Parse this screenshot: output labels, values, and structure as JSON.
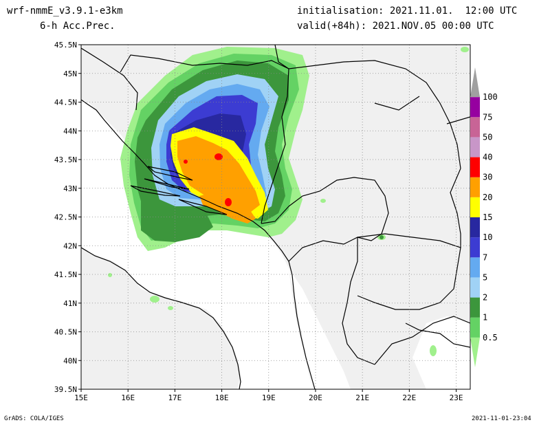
{
  "header": {
    "model": "wrf-nmmE_v3.9.1-e3km",
    "field": "6-h Acc.Prec.",
    "init_label": "initialisation:",
    "init_value": "2021.11.01.  12:00 UTC",
    "valid_label": "valid(+84h):",
    "valid_value": "2021.NOV.05 00:00 UTC"
  },
  "map": {
    "lon_range": [
      15,
      23.3
    ],
    "lat_range": [
      39.5,
      45.5
    ],
    "lon_ticks": [
      "15E",
      "16E",
      "17E",
      "18E",
      "19E",
      "20E",
      "21E",
      "22E",
      "23E"
    ],
    "lat_ticks": [
      "39.5N",
      "40N",
      "40.5N",
      "41N",
      "41.5N",
      "42N",
      "42.5N",
      "43N",
      "43.5N",
      "44N",
      "44.5N",
      "45N",
      "45.5N"
    ],
    "land_color": "#f0f0f0",
    "sea_color": "#ffffff",
    "grid": "dotted"
  },
  "colorbar": {
    "levels": [
      "0.5",
      "1",
      "2",
      "5",
      "7",
      "10",
      "15",
      "20",
      "30",
      "40",
      "50",
      "75",
      "100"
    ],
    "colors": [
      "#a0f08c",
      "#64d264",
      "#3c963c",
      "#a0d2f5",
      "#64aaf0",
      "#3c3cd2",
      "#2828a0",
      "#ffff00",
      "#ffa000",
      "#ff0000",
      "#c896c8",
      "#c86496",
      "#9600a0",
      "#a0a0a0"
    ]
  },
  "footer": {
    "credit": "GrADS: COLA/IGES",
    "timestamp": "2021-11-01-23:04"
  }
}
